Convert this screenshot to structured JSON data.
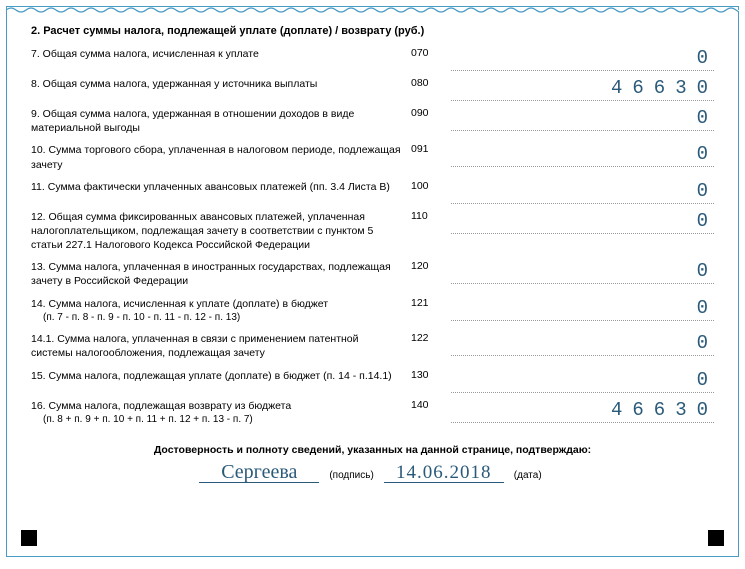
{
  "section_title": "2. Расчет суммы налога, подлежащей уплате (доплате) / возврату (руб.)",
  "rows": [
    {
      "label": "7. Общая сумма налога, исчисленная к уплате",
      "sub": "",
      "code": "070",
      "value": "0"
    },
    {
      "label": "8. Общая сумма налога, удержанная у источника выплаты",
      "sub": "",
      "code": "080",
      "value": "46630"
    },
    {
      "label": "9. Общая сумма налога, удержанная в отношении доходов в виде материальной выгоды",
      "sub": "",
      "code": "090",
      "value": "0"
    },
    {
      "label": "10. Сумма торгового сбора, уплаченная в налоговом периоде, подлежащая зачету",
      "sub": "",
      "code": "091",
      "value": "0"
    },
    {
      "label": "11. Сумма фактически уплаченных авансовых платежей (пп. 3.4 Листа В)",
      "sub": "",
      "code": "100",
      "value": "0"
    },
    {
      "label": "12. Общая сумма фиксированных авансовых платежей, уплаченная налогоплательщиком, подлежащая зачету в соответствии с пунктом 5 статьи 227.1 Налогового Кодекса Российской Федерации",
      "sub": "",
      "code": "110",
      "value": "0"
    },
    {
      "label": "13. Сумма налога, уплаченная в иностранных государствах, подлежащая зачету в Российской Федерации",
      "sub": "",
      "code": "120",
      "value": "0"
    },
    {
      "label": "14. Сумма налога, исчисленная к уплате (доплате) в бюджет",
      "sub": "(п. 7 - п. 8 - п. 9 - п. 10 - п. 11 - п. 12 - п. 13)",
      "code": "121",
      "value": "0"
    },
    {
      "label": "14.1. Сумма налога, уплаченная в связи с применением патентной системы налогообложения, подлежащая зачету",
      "sub": "",
      "code": "122",
      "value": "0"
    },
    {
      "label": "15. Сумма налога, подлежащая уплате (доплате) в бюджет (п. 14 - п.14.1)",
      "sub": "",
      "code": "130",
      "value": "0"
    },
    {
      "label": "16. Сумма налога, подлежащая возврату из бюджета",
      "sub": "(п. 8 + п. 9 + п. 10 + п. 11 + п. 12 + п. 13 - п. 7)",
      "code": "140",
      "value": "46630"
    }
  ],
  "confirm": {
    "title": "Достоверность и полноту сведений, указанных на данной странице, подтверждаю:",
    "signature": "Сергеева",
    "signature_caption": "(подпись)",
    "date": "14.06.2018",
    "date_caption": "(дата)"
  },
  "colors": {
    "border": "#4a9cc7",
    "value_text": "#2a5a7a",
    "dotted": "#999999"
  }
}
